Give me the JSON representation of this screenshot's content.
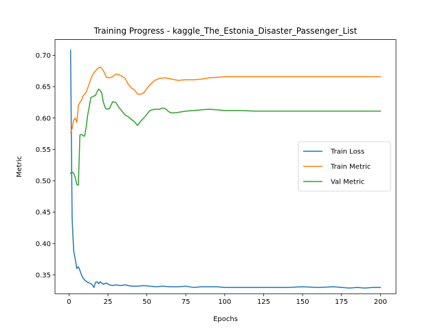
{
  "chart_data": {
    "type": "line",
    "title": "Training Progress - kaggle_The_Estonia_Disaster_Passenger_List",
    "xlabel": "Epochs",
    "ylabel": "Metric",
    "xlim": [
      -9,
      210
    ],
    "ylim": [
      0.32,
      0.725
    ],
    "xticks": [
      0,
      25,
      50,
      75,
      100,
      125,
      150,
      175,
      200
    ],
    "yticks": [
      0.35,
      0.4,
      0.45,
      0.5,
      0.55,
      0.6,
      0.65,
      0.7
    ],
    "grid": false,
    "legend_position": "center-right",
    "series": [
      {
        "name": "Train Loss",
        "color": "#1f77b4",
        "x": [
          1,
          2,
          3,
          4,
          5,
          6,
          7,
          8,
          9,
          10,
          11,
          12,
          13,
          14,
          15,
          16,
          17,
          18,
          19,
          20,
          22,
          24,
          26,
          28,
          30,
          33,
          36,
          40,
          44,
          48,
          52,
          56,
          60,
          65,
          70,
          75,
          80,
          85,
          90,
          95,
          100,
          110,
          120,
          130,
          140,
          150,
          160,
          170,
          180,
          185,
          190,
          195,
          200
        ],
        "y": [
          0.708,
          0.44,
          0.388,
          0.375,
          0.36,
          0.363,
          0.357,
          0.35,
          0.345,
          0.342,
          0.34,
          0.338,
          0.337,
          0.336,
          0.334,
          0.33,
          0.338,
          0.339,
          0.336,
          0.339,
          0.335,
          0.337,
          0.334,
          0.333,
          0.334,
          0.333,
          0.334,
          0.332,
          0.332,
          0.333,
          0.332,
          0.331,
          0.332,
          0.331,
          0.331,
          0.332,
          0.33,
          0.331,
          0.331,
          0.331,
          0.33,
          0.33,
          0.33,
          0.33,
          0.33,
          0.331,
          0.33,
          0.331,
          0.329,
          0.33,
          0.329,
          0.33,
          0.33
        ]
      },
      {
        "name": "Train Metric",
        "color": "#ff7f0e",
        "x": [
          1,
          2,
          3,
          4,
          5,
          6,
          7,
          8,
          9,
          10,
          11,
          12,
          13,
          14,
          15,
          16,
          17,
          18,
          19,
          20,
          21,
          22,
          24,
          26,
          28,
          30,
          32,
          34,
          36,
          38,
          40,
          42,
          44,
          46,
          48,
          50,
          52,
          55,
          58,
          62,
          66,
          70,
          75,
          80,
          85,
          90,
          95,
          100,
          110,
          120,
          130,
          140,
          150,
          160,
          170,
          180,
          190,
          200
        ],
        "y": [
          0.577,
          0.583,
          0.597,
          0.6,
          0.593,
          0.62,
          0.625,
          0.628,
          0.635,
          0.638,
          0.641,
          0.648,
          0.655,
          0.662,
          0.668,
          0.672,
          0.675,
          0.678,
          0.68,
          0.681,
          0.679,
          0.676,
          0.665,
          0.664,
          0.666,
          0.67,
          0.669,
          0.667,
          0.663,
          0.654,
          0.648,
          0.645,
          0.638,
          0.638,
          0.64,
          0.647,
          0.653,
          0.66,
          0.663,
          0.664,
          0.662,
          0.66,
          0.661,
          0.661,
          0.662,
          0.664,
          0.665,
          0.666,
          0.666,
          0.666,
          0.666,
          0.666,
          0.666,
          0.666,
          0.666,
          0.666,
          0.666,
          0.666
        ]
      },
      {
        "name": "Val Metric",
        "color": "#2ca02c",
        "x": [
          1,
          2,
          3,
          4,
          5,
          6,
          7,
          8,
          9,
          10,
          11,
          12,
          13,
          14,
          15,
          16,
          17,
          18,
          19,
          20,
          21,
          22,
          23,
          24,
          26,
          28,
          30,
          32,
          34,
          36,
          38,
          40,
          42,
          44,
          46,
          48,
          50,
          52,
          55,
          58,
          60,
          62,
          64,
          66,
          70,
          75,
          80,
          85,
          90,
          95,
          100,
          110,
          120,
          130,
          140,
          150,
          160,
          170,
          180,
          190,
          200
        ],
        "y": [
          0.512,
          0.514,
          0.512,
          0.505,
          0.494,
          0.493,
          0.573,
          0.574,
          0.572,
          0.571,
          0.585,
          0.605,
          0.618,
          0.632,
          0.634,
          0.635,
          0.636,
          0.642,
          0.646,
          0.644,
          0.64,
          0.626,
          0.618,
          0.614,
          0.615,
          0.626,
          0.625,
          0.617,
          0.611,
          0.605,
          0.602,
          0.598,
          0.594,
          0.588,
          0.595,
          0.6,
          0.606,
          0.612,
          0.614,
          0.614,
          0.616,
          0.615,
          0.61,
          0.608,
          0.609,
          0.611,
          0.612,
          0.613,
          0.614,
          0.613,
          0.612,
          0.612,
          0.611,
          0.611,
          0.611,
          0.611,
          0.611,
          0.611,
          0.611,
          0.611,
          0.611
        ]
      }
    ]
  }
}
